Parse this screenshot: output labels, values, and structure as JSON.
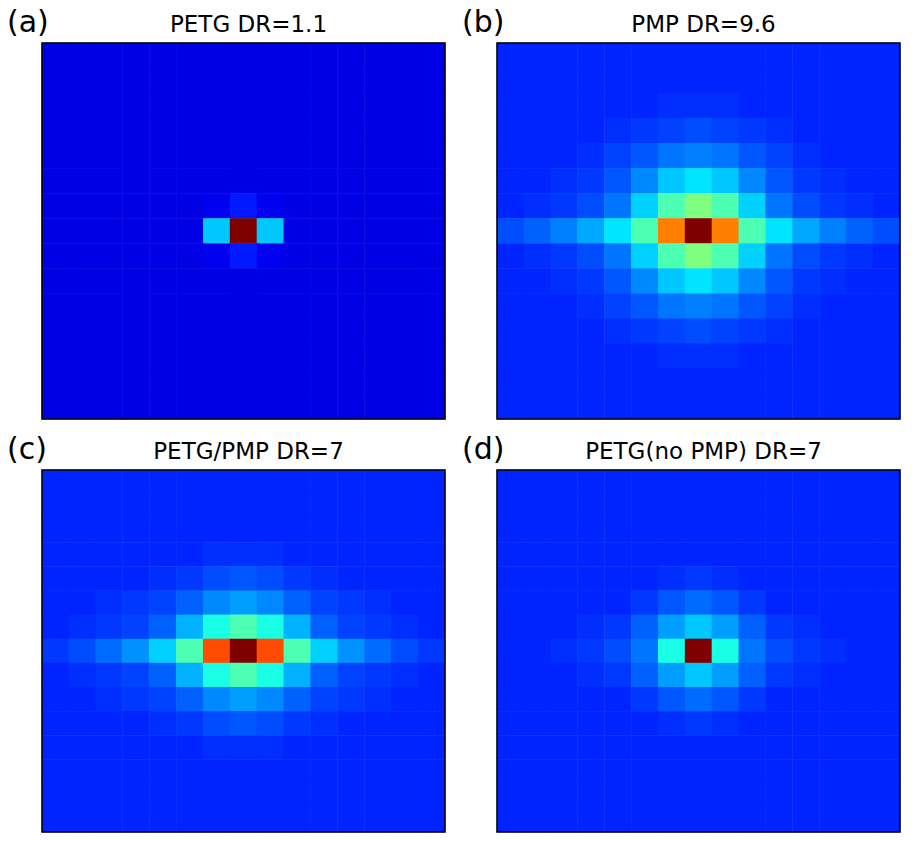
{
  "chart_data": [
    {
      "type": "heatmap",
      "panel": "(a)",
      "title": "PETG DR=1.1",
      "tick_labels": false,
      "zlim": [
        0,
        10
      ],
      "cells": [
        [
          1,
          1,
          1,
          1,
          1,
          1,
          1,
          1,
          1,
          1,
          1,
          1,
          1,
          1,
          1
        ],
        [
          1,
          1,
          1,
          1,
          1,
          1,
          1,
          1,
          1,
          1,
          1,
          1,
          1,
          1,
          1
        ],
        [
          1,
          1,
          1,
          1,
          1,
          1,
          1,
          1,
          1,
          1,
          1,
          1,
          1,
          1,
          1
        ],
        [
          1,
          1,
          1,
          1,
          1,
          1,
          1,
          1,
          1,
          1,
          1,
          1,
          1,
          1,
          1
        ],
        [
          1,
          1,
          1,
          1,
          1,
          1,
          1,
          1,
          1,
          1,
          1,
          1,
          1,
          1,
          1
        ],
        [
          1,
          1,
          1,
          1,
          1,
          1,
          1,
          1,
          1,
          1,
          1,
          1,
          1,
          1,
          1
        ],
        [
          1,
          1,
          1,
          1,
          1,
          1,
          1.1,
          1.5,
          1.1,
          1,
          1,
          1,
          1,
          1,
          1
        ],
        [
          1,
          1,
          1,
          1,
          1,
          1,
          3.2,
          10,
          3.2,
          1,
          1,
          1,
          1,
          1,
          1
        ],
        [
          1,
          1,
          1,
          1,
          1,
          1,
          1.1,
          1.5,
          1.1,
          1,
          1,
          1,
          1,
          1,
          1
        ],
        [
          1,
          1,
          1,
          1,
          1,
          1,
          1,
          1,
          1,
          1,
          1,
          1,
          1,
          1,
          1
        ],
        [
          1,
          1,
          1,
          1,
          1,
          1,
          1,
          1,
          1,
          1,
          1,
          1,
          1,
          1,
          1
        ],
        [
          1,
          1,
          1,
          1,
          1,
          1,
          1,
          1,
          1,
          1,
          1,
          1,
          1,
          1,
          1
        ],
        [
          1,
          1,
          1,
          1,
          1,
          1,
          1,
          1,
          1,
          1,
          1,
          1,
          1,
          1,
          1
        ],
        [
          1,
          1,
          1,
          1,
          1,
          1,
          1,
          1,
          1,
          1,
          1,
          1,
          1,
          1,
          1
        ],
        [
          1,
          1,
          1,
          1,
          1,
          1,
          1,
          1,
          1,
          1,
          1,
          1,
          1,
          1,
          1
        ]
      ]
    },
    {
      "type": "heatmap",
      "panel": "(b)",
      "title": "PMP DR=9.6",
      "tick_labels": false,
      "zlim": [
        0,
        10
      ],
      "cells": [
        [
          1.6,
          1.6,
          1.6,
          1.6,
          1.6,
          1.6,
          1.6,
          1.6,
          1.6,
          1.6,
          1.6,
          1.6,
          1.6,
          1.6,
          1.6
        ],
        [
          1.6,
          1.6,
          1.6,
          1.6,
          1.6,
          1.6,
          1.6,
          1.6,
          1.6,
          1.6,
          1.6,
          1.6,
          1.6,
          1.6,
          1.6
        ],
        [
          1.6,
          1.6,
          1.6,
          1.6,
          1.6,
          1.6,
          1.7,
          1.7,
          1.7,
          1.6,
          1.6,
          1.6,
          1.6,
          1.6,
          1.6
        ],
        [
          1.6,
          1.6,
          1.6,
          1.6,
          1.7,
          1.8,
          1.9,
          2,
          1.9,
          1.8,
          1.7,
          1.6,
          1.6,
          1.6,
          1.6
        ],
        [
          1.6,
          1.6,
          1.6,
          1.7,
          1.9,
          2.1,
          2.4,
          2.5,
          2.4,
          2.1,
          1.9,
          1.7,
          1.6,
          1.6,
          1.6
        ],
        [
          1.6,
          1.6,
          1.7,
          1.8,
          2.1,
          2.6,
          3.2,
          3.5,
          3.2,
          2.6,
          2.1,
          1.8,
          1.7,
          1.6,
          1.6
        ],
        [
          1.6,
          1.7,
          1.8,
          2,
          2.4,
          3.3,
          4.5,
          5,
          4.5,
          3.3,
          2.4,
          2,
          1.8,
          1.7,
          1.6
        ],
        [
          2,
          2.2,
          2.5,
          2.9,
          3.5,
          4.5,
          7.5,
          10,
          7.5,
          4.5,
          3.5,
          2.9,
          2.5,
          2.2,
          2
        ],
        [
          1.6,
          1.7,
          1.8,
          2,
          2.4,
          3.3,
          4.5,
          5,
          4.5,
          3.3,
          2.4,
          2,
          1.8,
          1.7,
          1.6
        ],
        [
          1.6,
          1.6,
          1.7,
          1.8,
          2.1,
          2.6,
          3.2,
          3.5,
          3.2,
          2.6,
          2.1,
          1.8,
          1.7,
          1.6,
          1.6
        ],
        [
          1.6,
          1.6,
          1.6,
          1.7,
          1.9,
          2.1,
          2.4,
          2.5,
          2.4,
          2.1,
          1.9,
          1.7,
          1.6,
          1.6,
          1.6
        ],
        [
          1.6,
          1.6,
          1.6,
          1.6,
          1.7,
          1.8,
          1.9,
          2,
          1.9,
          1.8,
          1.7,
          1.6,
          1.6,
          1.6,
          1.6
        ],
        [
          1.6,
          1.6,
          1.6,
          1.6,
          1.6,
          1.6,
          1.7,
          1.7,
          1.7,
          1.6,
          1.6,
          1.6,
          1.6,
          1.6,
          1.6
        ],
        [
          1.6,
          1.6,
          1.6,
          1.6,
          1.6,
          1.6,
          1.6,
          1.6,
          1.6,
          1.6,
          1.6,
          1.6,
          1.6,
          1.6,
          1.6
        ],
        [
          1.6,
          1.6,
          1.6,
          1.6,
          1.6,
          1.6,
          1.6,
          1.6,
          1.6,
          1.6,
          1.6,
          1.6,
          1.6,
          1.6,
          1.6
        ]
      ]
    },
    {
      "type": "heatmap",
      "panel": "(c)",
      "title": "PETG/PMP DR=7",
      "tick_labels": false,
      "zlim": [
        0,
        10
      ],
      "cells": [
        [
          1.6,
          1.6,
          1.6,
          1.6,
          1.6,
          1.6,
          1.6,
          1.6,
          1.6,
          1.6,
          1.6,
          1.6,
          1.6,
          1.6,
          1.6
        ],
        [
          1.6,
          1.6,
          1.6,
          1.6,
          1.6,
          1.6,
          1.6,
          1.6,
          1.6,
          1.6,
          1.6,
          1.6,
          1.6,
          1.6,
          1.6
        ],
        [
          1.6,
          1.6,
          1.6,
          1.6,
          1.6,
          1.6,
          1.6,
          1.6,
          1.6,
          1.6,
          1.6,
          1.6,
          1.6,
          1.6,
          1.6
        ],
        [
          1.6,
          1.6,
          1.6,
          1.6,
          1.6,
          1.6,
          1.7,
          1.7,
          1.7,
          1.6,
          1.6,
          1.6,
          1.6,
          1.6,
          1.6
        ],
        [
          1.6,
          1.6,
          1.6,
          1.6,
          1.7,
          1.8,
          2,
          2.1,
          2,
          1.8,
          1.7,
          1.6,
          1.6,
          1.6,
          1.6
        ],
        [
          1.6,
          1.6,
          1.7,
          1.8,
          1.9,
          2.2,
          2.6,
          2.8,
          2.6,
          2.2,
          1.9,
          1.8,
          1.7,
          1.6,
          1.6
        ],
        [
          1.6,
          1.7,
          1.8,
          1.9,
          2.2,
          3,
          4,
          4.5,
          4,
          3,
          2.2,
          1.9,
          1.8,
          1.7,
          1.6
        ],
        [
          1.8,
          2,
          2.3,
          2.7,
          3.3,
          4.5,
          8,
          10,
          8,
          4.5,
          3.3,
          2.7,
          2.3,
          2,
          1.8
        ],
        [
          1.6,
          1.7,
          1.8,
          1.9,
          2.2,
          3,
          4,
          4.5,
          4,
          3,
          2.2,
          1.9,
          1.8,
          1.7,
          1.6
        ],
        [
          1.6,
          1.6,
          1.7,
          1.8,
          1.9,
          2.2,
          2.6,
          2.8,
          2.6,
          2.2,
          1.9,
          1.8,
          1.7,
          1.6,
          1.6
        ],
        [
          1.6,
          1.6,
          1.6,
          1.6,
          1.7,
          1.8,
          2,
          2.1,
          2,
          1.8,
          1.7,
          1.6,
          1.6,
          1.6,
          1.6
        ],
        [
          1.6,
          1.6,
          1.6,
          1.6,
          1.6,
          1.6,
          1.7,
          1.7,
          1.7,
          1.6,
          1.6,
          1.6,
          1.6,
          1.6,
          1.6
        ],
        [
          1.6,
          1.6,
          1.6,
          1.6,
          1.6,
          1.6,
          1.6,
          1.6,
          1.6,
          1.6,
          1.6,
          1.6,
          1.6,
          1.6,
          1.6
        ],
        [
          1.6,
          1.6,
          1.6,
          1.6,
          1.6,
          1.6,
          1.6,
          1.6,
          1.6,
          1.6,
          1.6,
          1.6,
          1.6,
          1.6,
          1.6
        ],
        [
          1.6,
          1.6,
          1.6,
          1.6,
          1.6,
          1.6,
          1.6,
          1.6,
          1.6,
          1.6,
          1.6,
          1.6,
          1.6,
          1.6,
          1.6
        ]
      ]
    },
    {
      "type": "heatmap",
      "panel": "(d)",
      "title": "PETG(no PMP) DR=7",
      "tick_labels": false,
      "zlim": [
        0,
        10
      ],
      "cells": [
        [
          1.6,
          1.6,
          1.6,
          1.6,
          1.6,
          1.6,
          1.6,
          1.6,
          1.6,
          1.6,
          1.6,
          1.6,
          1.6,
          1.6,
          1.6
        ],
        [
          1.6,
          1.6,
          1.6,
          1.6,
          1.6,
          1.6,
          1.6,
          1.6,
          1.6,
          1.6,
          1.6,
          1.6,
          1.6,
          1.6,
          1.6
        ],
        [
          1.6,
          1.6,
          1.6,
          1.6,
          1.6,
          1.6,
          1.6,
          1.6,
          1.6,
          1.6,
          1.6,
          1.6,
          1.6,
          1.6,
          1.6
        ],
        [
          1.6,
          1.6,
          1.6,
          1.6,
          1.6,
          1.6,
          1.6,
          1.6,
          1.6,
          1.6,
          1.6,
          1.6,
          1.6,
          1.6,
          1.6
        ],
        [
          1.6,
          1.6,
          1.6,
          1.6,
          1.6,
          1.6,
          1.7,
          1.8,
          1.7,
          1.6,
          1.6,
          1.6,
          1.6,
          1.6,
          1.6
        ],
        [
          1.6,
          1.6,
          1.6,
          1.6,
          1.6,
          1.8,
          2.1,
          2.3,
          2.1,
          1.8,
          1.6,
          1.6,
          1.6,
          1.6,
          1.6
        ],
        [
          1.6,
          1.6,
          1.6,
          1.7,
          1.8,
          2.2,
          2.8,
          3.2,
          2.8,
          2.2,
          1.8,
          1.7,
          1.6,
          1.6,
          1.6
        ],
        [
          1.6,
          1.6,
          1.7,
          1.8,
          2,
          2.4,
          4,
          10,
          4,
          2.4,
          2,
          1.8,
          1.7,
          1.6,
          1.6
        ],
        [
          1.6,
          1.6,
          1.6,
          1.7,
          1.8,
          2.2,
          2.8,
          3.2,
          2.8,
          2.2,
          1.8,
          1.7,
          1.6,
          1.6,
          1.6
        ],
        [
          1.6,
          1.6,
          1.6,
          1.6,
          1.6,
          1.8,
          2.1,
          2.3,
          2.1,
          1.8,
          1.6,
          1.6,
          1.6,
          1.6,
          1.6
        ],
        [
          1.6,
          1.6,
          1.6,
          1.6,
          1.6,
          1.6,
          1.7,
          1.8,
          1.7,
          1.6,
          1.6,
          1.6,
          1.6,
          1.6,
          1.6
        ],
        [
          1.6,
          1.6,
          1.6,
          1.6,
          1.6,
          1.6,
          1.6,
          1.6,
          1.6,
          1.6,
          1.6,
          1.6,
          1.6,
          1.6,
          1.6
        ],
        [
          1.6,
          1.6,
          1.6,
          1.6,
          1.6,
          1.6,
          1.6,
          1.6,
          1.6,
          1.6,
          1.6,
          1.6,
          1.6,
          1.6,
          1.6
        ],
        [
          1.6,
          1.6,
          1.6,
          1.6,
          1.6,
          1.6,
          1.6,
          1.6,
          1.6,
          1.6,
          1.6,
          1.6,
          1.6,
          1.6,
          1.6
        ],
        [
          1.6,
          1.6,
          1.6,
          1.6,
          1.6,
          1.6,
          1.6,
          1.6,
          1.6,
          1.6,
          1.6,
          1.6,
          1.6,
          1.6,
          1.6
        ]
      ]
    }
  ]
}
